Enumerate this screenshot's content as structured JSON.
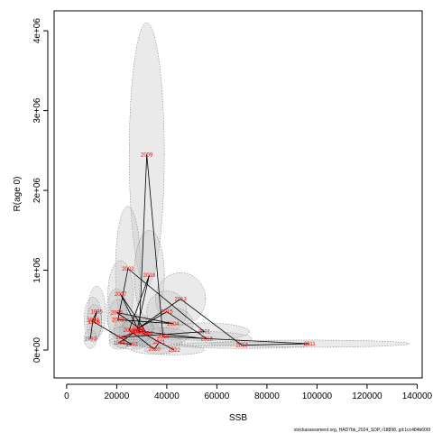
{
  "chart_data": {
    "type": "scatter",
    "xlabel": "SSB",
    "ylabel": "R(age 0)",
    "xlim": [
      -5000,
      142000
    ],
    "ylim": [
      -350000,
      4250000
    ],
    "x_ticks": [
      0,
      20000,
      40000,
      60000,
      80000,
      100000,
      120000,
      140000
    ],
    "x_tick_labels": [
      "0",
      "20000",
      "40000",
      "60000",
      "80000",
      "100000",
      "120000",
      "140000"
    ],
    "y_ticks": [
      0,
      1000000,
      2000000,
      3000000,
      4000000
    ],
    "y_tick_labels": [
      "0e+00",
      "1e+06",
      "2e+06",
      "3e+06",
      "4e+06"
    ],
    "source_note": "stockassessment.org, HAD7bk_2024_SDP, r18898, git:1cc484b606f",
    "colors": {
      "ellipse_fill": "#bebebe",
      "ellipse_stroke": "#6e6e6e",
      "year_label": "#ff0000",
      "line": "#000000"
    },
    "points": [
      {
        "year": "1993",
        "ssb": 9500,
        "rec": 140000
      },
      {
        "year": "1994",
        "ssb": 10500,
        "rec": 380000
      },
      {
        "year": "1995",
        "ssb": 12000,
        "rec": 480000
      },
      {
        "year": "1996",
        "ssb": 11000,
        "rec": 350000
      },
      {
        "year": "1997",
        "ssb": 26000,
        "rec": 70000
      },
      {
        "year": "1998",
        "ssb": 21000,
        "rec": 90000
      },
      {
        "year": "1999",
        "ssb": 27000,
        "rec": 220000
      },
      {
        "year": "2000",
        "ssb": 22000,
        "rec": 160000
      },
      {
        "year": "2001",
        "ssb": 55000,
        "rec": 230000
      },
      {
        "year": "2002",
        "ssb": 24500,
        "rec": 1020000
      },
      {
        "year": "2003",
        "ssb": 20500,
        "rec": 380000
      },
      {
        "year": "2004",
        "ssb": 42500,
        "rec": 330000
      },
      {
        "year": "2005",
        "ssb": 20000,
        "rec": 470000
      },
      {
        "year": "2006",
        "ssb": 32000,
        "rec": 210000
      },
      {
        "year": "2007",
        "ssb": 21500,
        "rec": 700000
      },
      {
        "year": "2008",
        "ssb": 29000,
        "rec": 230000
      },
      {
        "year": "2009",
        "ssb": 32000,
        "rec": 2450000
      },
      {
        "year": "2010",
        "ssb": 38500,
        "rec": 170000
      },
      {
        "year": "2011",
        "ssb": 97000,
        "rec": 80000
      },
      {
        "year": "2012",
        "ssb": 70000,
        "rec": 60000
      },
      {
        "year": "2013",
        "ssb": 45500,
        "rec": 640000
      },
      {
        "year": "2014",
        "ssb": 28500,
        "rec": 270000
      },
      {
        "year": "2015",
        "ssb": 40000,
        "rec": 480000
      },
      {
        "year": "2016",
        "ssb": 56000,
        "rec": 140000
      },
      {
        "year": "2017",
        "ssb": 28000,
        "rec": 240000
      },
      {
        "year": "2018",
        "ssb": 33000,
        "rec": 940000
      },
      {
        "year": "2019",
        "ssb": 25000,
        "rec": 250000
      },
      {
        "year": "2020",
        "ssb": 35000,
        "rec": 10000
      },
      {
        "year": "2021",
        "ssb": 37000,
        "rec": 100000
      },
      {
        "year": "2022",
        "ssb": 43000,
        "rec": 0
      },
      {
        "year": "2023",
        "ssb": 30500,
        "rec": 210000
      }
    ],
    "line_order": [
      "1993",
      "1994",
      "1995",
      "1996",
      "1997",
      "1998",
      "1999",
      "2000",
      "2001",
      "2002",
      "2003",
      "2004",
      "2005",
      "2006",
      "2007",
      "2008",
      "2009",
      "2010",
      "2011",
      "2012",
      "2013",
      "2014",
      "2015",
      "2016",
      "2017",
      "2018",
      "2019",
      "2020",
      "2021",
      "2022",
      "2023"
    ],
    "uncertainty_ellipses": [
      {
        "year": "2009",
        "ssb_halfwidth": 7000,
        "rec_halfheight": 1650000
      },
      {
        "year": "2002",
        "ssb_halfwidth": 5000,
        "rec_halfheight": 780000
      },
      {
        "year": "2018",
        "ssb_halfwidth": 6000,
        "rec_halfheight": 560000
      },
      {
        "year": "2013",
        "ssb_halfwidth": 10000,
        "rec_halfheight": 330000
      },
      {
        "year": "2011",
        "ssb_halfwidth": 40000,
        "rec_halfheight": 45000
      },
      {
        "year": "2012",
        "ssb_halfwidth": 27000,
        "rec_halfheight": 40000
      },
      {
        "year": "2001",
        "ssb_halfwidth": 18000,
        "rec_halfheight": 110000
      },
      {
        "year": "2016",
        "ssb_halfwidth": 18000,
        "rec_halfheight": 90000
      },
      {
        "year": "2007",
        "ssb_halfwidth": 5000,
        "rec_halfheight": 420000
      },
      {
        "year": "2015",
        "ssb_halfwidth": 8000,
        "rec_halfheight": 260000
      },
      {
        "year": "1995",
        "ssb_halfwidth": 3500,
        "rec_halfheight": 320000
      },
      {
        "year": "1994",
        "ssb_halfwidth": 3500,
        "rec_halfheight": 280000
      },
      {
        "year": "2005",
        "ssb_halfwidth": 4000,
        "rec_halfheight": 300000
      },
      {
        "year": "2003",
        "ssb_halfwidth": 4000,
        "rec_halfheight": 250000
      },
      {
        "year": "2004",
        "ssb_halfwidth": 8000,
        "rec_halfheight": 200000
      },
      {
        "year": "2010",
        "ssb_halfwidth": 10000,
        "rec_halfheight": 110000
      },
      {
        "year": "2022",
        "ssb_halfwidth": 12000,
        "rec_halfheight": 60000
      },
      {
        "year": "2020",
        "ssb_halfwidth": 9000,
        "rec_halfheight": 60000
      },
      {
        "year": "2021",
        "ssb_halfwidth": 9000,
        "rec_halfheight": 80000
      },
      {
        "year": "2006",
        "ssb_halfwidth": 7000,
        "rec_halfheight": 150000
      },
      {
        "year": "2023",
        "ssb_halfwidth": 7000,
        "rec_halfheight": 170000
      },
      {
        "year": "2014",
        "ssb_halfwidth": 6000,
        "rec_halfheight": 180000
      },
      {
        "year": "2008",
        "ssb_halfwidth": 6000,
        "rec_halfheight": 180000
      },
      {
        "year": "2019",
        "ssb_halfwidth": 6000,
        "rec_halfheight": 190000
      },
      {
        "year": "2017",
        "ssb_halfwidth": 6000,
        "rec_halfheight": 180000
      },
      {
        "year": "1999",
        "ssb_halfwidth": 6000,
        "rec_halfheight": 160000
      },
      {
        "year": "2000",
        "ssb_halfwidth": 5000,
        "rec_halfheight": 130000
      },
      {
        "year": "1998",
        "ssb_halfwidth": 4000,
        "rec_halfheight": 80000
      },
      {
        "year": "1997",
        "ssb_halfwidth": 6000,
        "rec_halfheight": 60000
      },
      {
        "year": "1996",
        "ssb_halfwidth": 3000,
        "rec_halfheight": 220000
      },
      {
        "year": "1993",
        "ssb_halfwidth": 2500,
        "rec_halfheight": 120000
      }
    ]
  }
}
